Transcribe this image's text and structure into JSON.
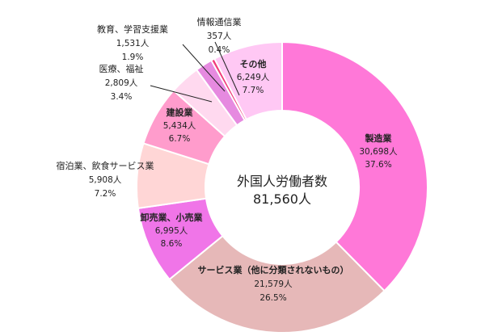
{
  "chart_data": {
    "type": "donut",
    "center_title": "外国人労働者数",
    "center_value": "81,560人",
    "slices": [
      {
        "name": "製造業",
        "count": "30,698人",
        "percent": "37.6%",
        "value": 37.6,
        "color": "#ff78d8",
        "name_bold": true
      },
      {
        "name": "サービス業（他に分類されないもの）",
        "count": "21,579人",
        "percent": "26.5%",
        "value": 26.5,
        "color": "#e6b8b8",
        "name_bold": true
      },
      {
        "name": "卸売業、小売業",
        "count": "6,995人",
        "percent": "8.6%",
        "value": 8.6,
        "color": "#f075e8",
        "name_bold": true
      },
      {
        "name": "宿泊業、飲食サービス業",
        "count": "5,908人",
        "percent": "7.2%",
        "value": 7.2,
        "color": "#ffd6d6",
        "name_bold": false
      },
      {
        "name": "建設業",
        "count": "5,434人",
        "percent": "6.7%",
        "value": 6.7,
        "color": "#ff9ccc",
        "name_bold": true
      },
      {
        "name": "医療、福祉",
        "count": "2,809人",
        "percent": "3.4%",
        "value": 3.4,
        "color": "#ffd9ef",
        "name_bold": false
      },
      {
        "name": "教育、学習支援業",
        "count": "1,531人",
        "percent": "1.9%",
        "value": 1.9,
        "color": "#e68ae0",
        "name_bold": false
      },
      {
        "name": "情報通信業",
        "count": "357人",
        "percent": "0.4%",
        "value": 0.4,
        "color": "#f23c7a",
        "name_bold": false
      },
      {
        "name": "その他",
        "count": "6,249人",
        "percent": "7.7%",
        "value": 7.7,
        "color": "#ffc8f4",
        "name_bold": true
      }
    ]
  }
}
